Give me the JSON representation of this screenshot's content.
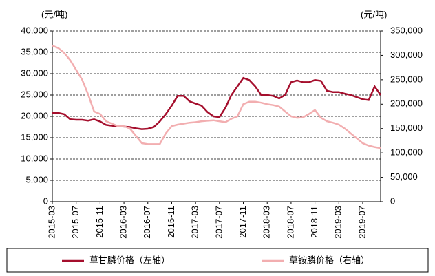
{
  "chart_data": {
    "type": "line",
    "y_unit": "(元/吨)",
    "y2_unit": "(元/吨)",
    "x": [
      "2015-03",
      "2015-04",
      "2015-05",
      "2015-06",
      "2015-07",
      "2015-08",
      "2015-09",
      "2015-10",
      "2015-11",
      "2015-12",
      "2016-01",
      "2016-02",
      "2016-03",
      "2016-04",
      "2016-05",
      "2016-06",
      "2016-07",
      "2016-08",
      "2016-09",
      "2016-10",
      "2016-11",
      "2016-12",
      "2017-01",
      "2017-02",
      "2017-03",
      "2017-04",
      "2017-05",
      "2017-06",
      "2017-07",
      "2017-08",
      "2017-09",
      "2017-10",
      "2017-11",
      "2017-12",
      "2018-01",
      "2018-02",
      "2018-03",
      "2018-04",
      "2018-05",
      "2018-06",
      "2018-07",
      "2018-08",
      "2018-09",
      "2018-10",
      "2018-11",
      "2018-12",
      "2019-01",
      "2019-02",
      "2019-03",
      "2019-04",
      "2019-05",
      "2019-06",
      "2019-07",
      "2019-08",
      "2019-09",
      "2019-10"
    ],
    "xticks": [
      "2015-03",
      "2015-07",
      "2015-11",
      "2016-03",
      "2016-07",
      "2016-11",
      "2017-03",
      "2017-07",
      "2017-11",
      "2018-03",
      "2018-07",
      "2018-11",
      "2019-03",
      "2019-07"
    ],
    "series": [
      {
        "name": "草甘膦价格（左轴）",
        "color": "#a50f2d",
        "axis": "y",
        "values": [
          20800,
          20800,
          20500,
          19300,
          19200,
          19200,
          19000,
          19300,
          18800,
          18000,
          17800,
          17700,
          17600,
          17500,
          17200,
          17000,
          17100,
          17500,
          18800,
          20500,
          22500,
          24800,
          24800,
          23500,
          23000,
          22500,
          21000,
          20000,
          19800,
          22000,
          25000,
          27000,
          29000,
          28500,
          27000,
          25000,
          25000,
          24800,
          24200,
          25000,
          28000,
          28400,
          28000,
          28000,
          28500,
          28300,
          26000,
          25700,
          25700,
          25300,
          25000,
          24500,
          24000,
          23800,
          27000,
          25000
        ]
      },
      {
        "name": "草铵膦价格（右轴）",
        "color": "#f2aeb0",
        "axis": "y2",
        "values": [
          320000,
          315000,
          305000,
          290000,
          270000,
          250000,
          220000,
          185000,
          180000,
          165000,
          160000,
          155000,
          155000,
          150000,
          135000,
          120000,
          118000,
          118000,
          118000,
          140000,
          155000,
          158000,
          160000,
          162000,
          163000,
          165000,
          166000,
          167000,
          165000,
          163000,
          170000,
          175000,
          200000,
          205000,
          205000,
          203000,
          200000,
          198000,
          195000,
          185000,
          175000,
          172000,
          173000,
          180000,
          188000,
          172000,
          165000,
          162000,
          158000,
          150000,
          140000,
          130000,
          120000,
          115000,
          112000,
          110000
        ]
      }
    ],
    "ylim": [
      0,
      40000
    ],
    "yticks": [
      0,
      {
        "value": 5000,
        "label": "5,000"
      },
      {
        "value": 10000,
        "label": "10,000"
      },
      {
        "value": 15000,
        "label": "15,000"
      },
      {
        "value": 20000,
        "label": "20,000"
      },
      {
        "value": 25000,
        "label": "25,000"
      },
      {
        "value": 30000,
        "label": "30,000"
      },
      {
        "value": 35000,
        "label": "35,000"
      },
      {
        "value": 40000,
        "label": "40,000"
      }
    ],
    "y2lim": [
      0,
      350000
    ],
    "y2ticks": [
      0,
      {
        "value": 50000,
        "label": "50,000"
      },
      {
        "value": 100000,
        "label": "100,000"
      },
      {
        "value": 150000,
        "label": "150,000"
      },
      {
        "value": 200000,
        "label": "200,000"
      },
      {
        "value": 250000,
        "label": "250,000"
      },
      {
        "value": 300000,
        "label": "300,000"
      },
      {
        "value": 350000,
        "label": "350,000"
      }
    ],
    "grid": true
  }
}
